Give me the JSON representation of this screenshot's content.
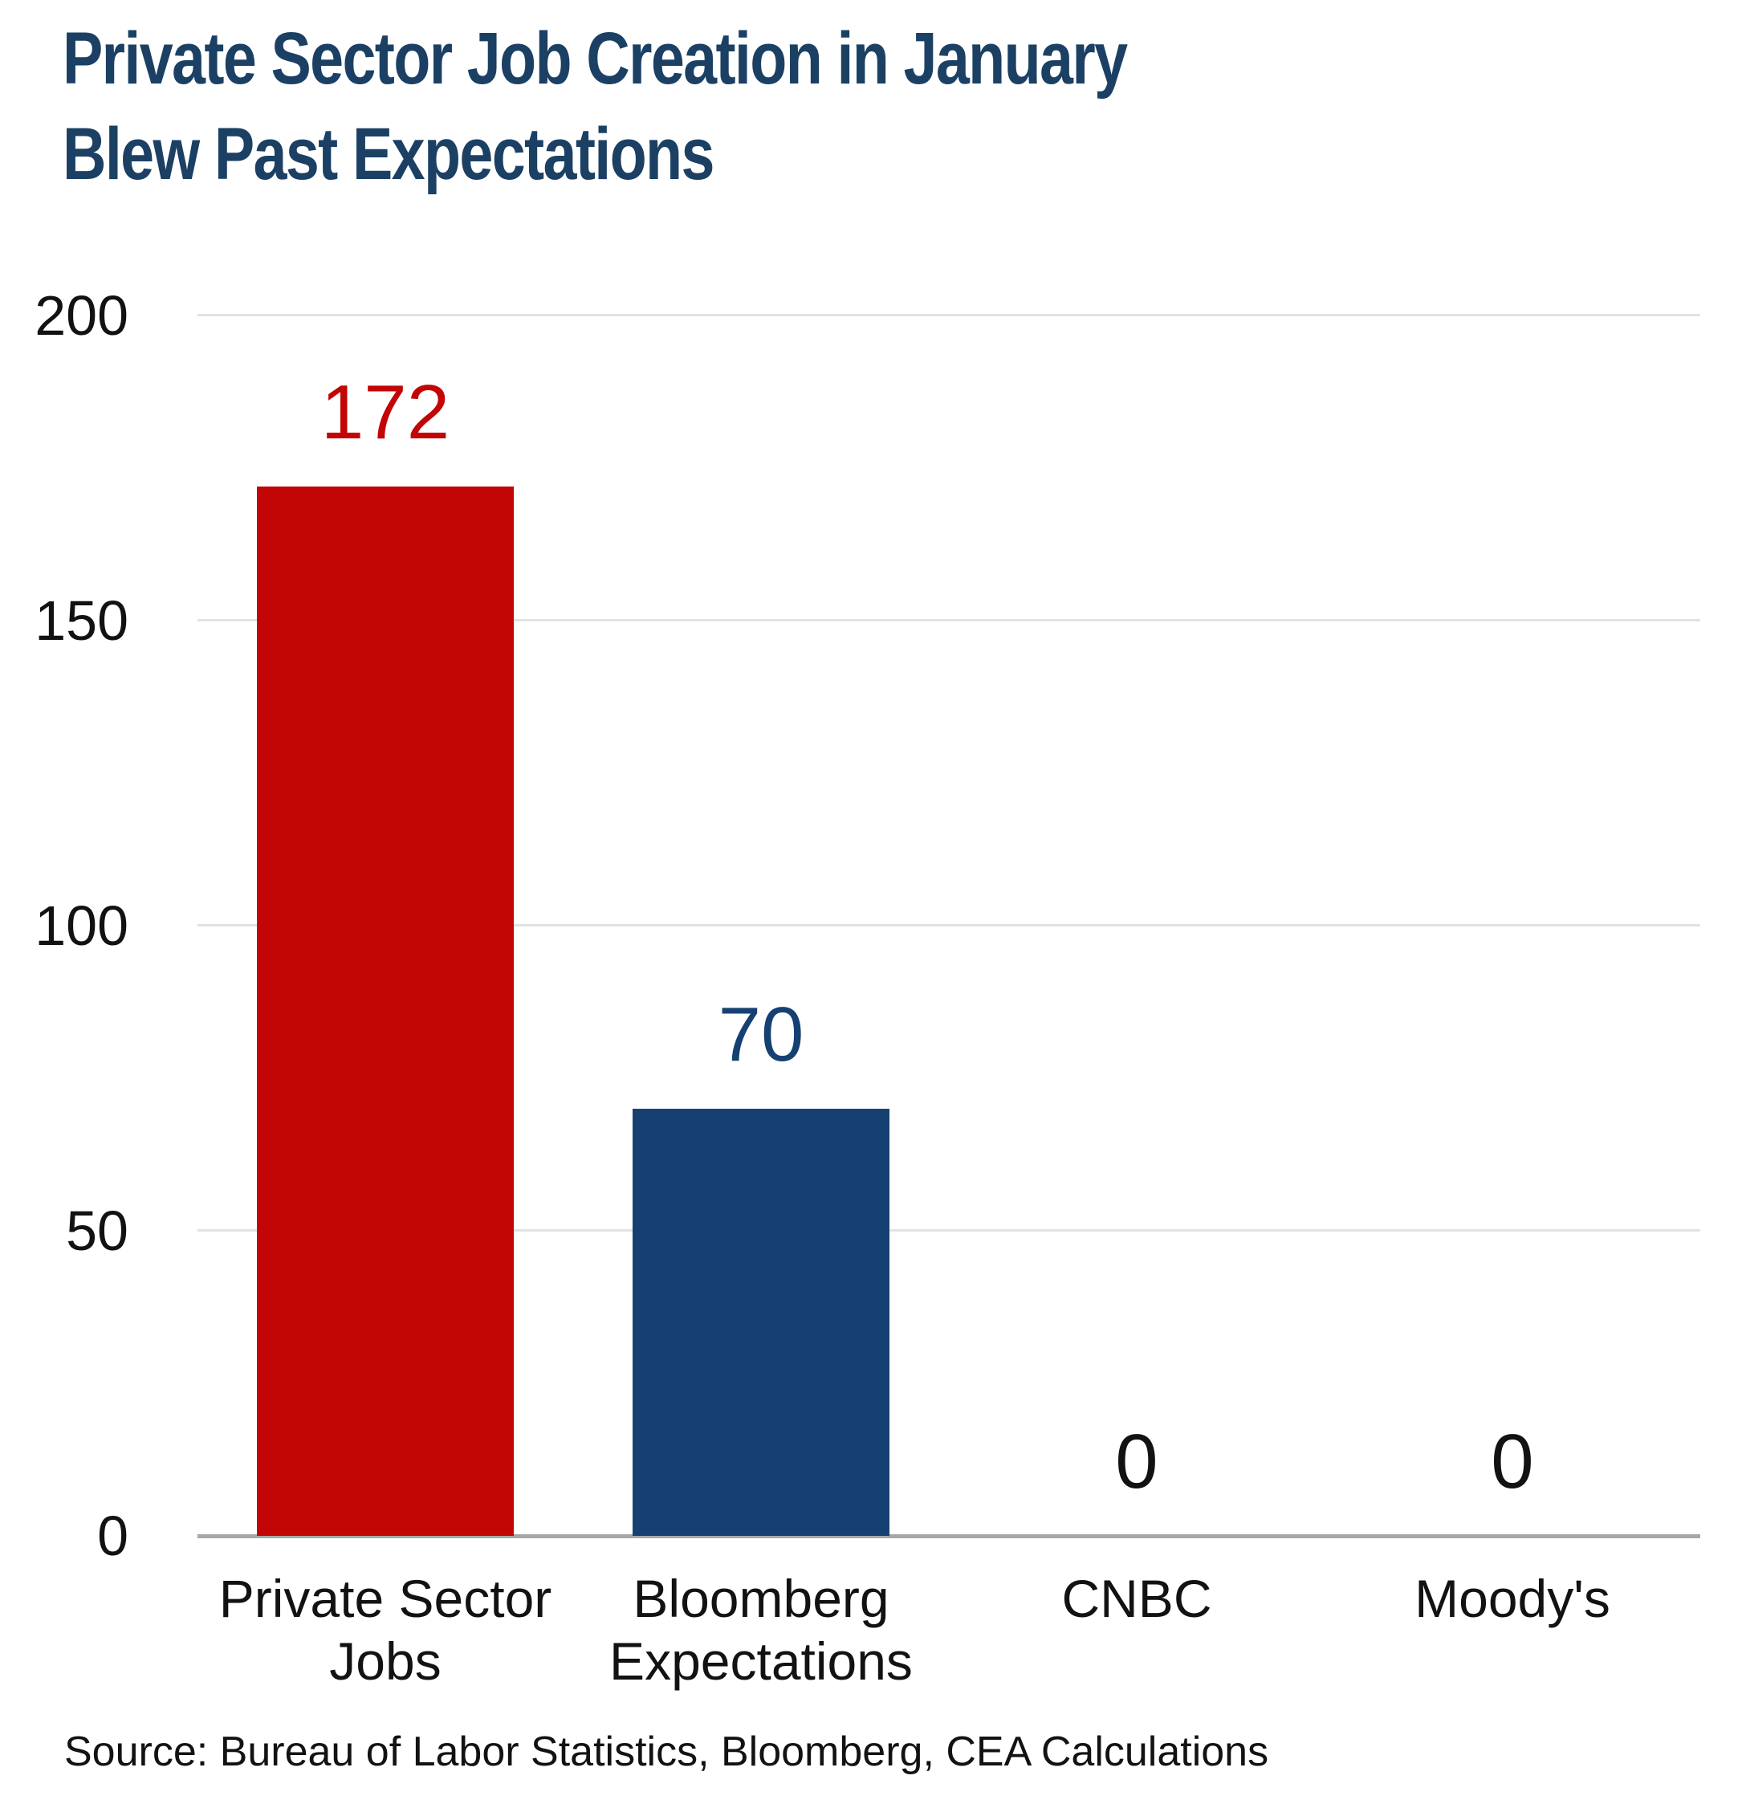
{
  "title_lines": {
    "line1": "Private Sector Job Creation in January",
    "line2": "Blew Past Expectations"
  },
  "source": "Source: Bureau of Labor Statistics, Bloomberg, CEA Calculations",
  "colors": {
    "title": "#1B4064",
    "red": "#C20505",
    "navy": "#164072",
    "black_text": "#121212",
    "gridline": "#E2E2E2",
    "baseline": "#A7A7A7"
  },
  "y_axis": {
    "ticks": [
      200,
      150,
      100,
      50,
      0
    ]
  },
  "chart_data": {
    "type": "bar",
    "title": "Private Sector Job Creation in January Blew Past Expectations",
    "categories": [
      "Private Sector Jobs",
      "Bloomberg Expectations",
      "CNBC",
      "Moody's"
    ],
    "category_lines": [
      [
        "Private Sector",
        "Jobs"
      ],
      [
        "Bloomberg",
        "Expectations"
      ],
      [
        "CNBC"
      ],
      [
        "Moody's"
      ]
    ],
    "values": [
      172,
      70,
      0,
      0
    ],
    "bar_colors": [
      "#C20505",
      "#164072",
      "none",
      "none"
    ],
    "label_colors": [
      "#C20505",
      "#164072",
      "#121212",
      "#121212"
    ],
    "xlabel": "",
    "ylabel": "",
    "ylim": [
      0,
      200
    ],
    "grid": true,
    "legend": false,
    "source": "Source: Bureau of Labor Statistics, Bloomberg, CEA Calculations"
  }
}
